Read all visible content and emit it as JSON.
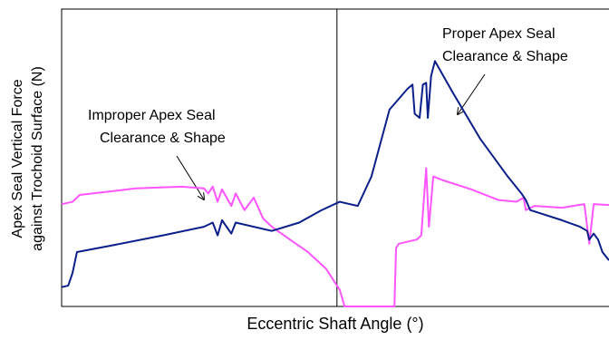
{
  "chart_data": {
    "type": "line",
    "y_label_lines": [
      "Apex Seal Vertical Force",
      "against Trochoid Surface (N)"
    ],
    "x_label": "Eccentric Shaft Angle (°)",
    "xlim": [
      0,
      100
    ],
    "ylim": [
      0,
      100
    ],
    "vline": 50.3,
    "annotations": [
      {
        "lines": [
          "Improper Apex Seal",
          "Clearance & Shape"
        ]
      },
      {
        "lines": [
          "Proper Apex Seal",
          "Clearance & Shape"
        ]
      }
    ],
    "series": [
      {
        "color": "#ff55ff",
        "x": [
          0,
          2.0,
          3.3,
          13.6,
          21.9,
          26.0,
          26.8,
          27.6,
          28.5,
          29.3,
          31.0,
          31.8,
          33.4,
          35.1,
          36.8,
          38.4,
          41.7,
          45.0,
          48.3,
          50.8,
          51.7,
          60.8,
          61.1,
          61.6,
          64.9,
          65.7,
          66.6,
          67.1,
          67.9,
          69.9,
          74.8,
          79.8,
          83.1,
          84.4,
          84.8,
          86.4,
          91.4,
          95.5,
          96.4,
          97.2,
          100
        ],
        "values": [
          34.4,
          35.2,
          37.5,
          39.7,
          40.3,
          39.7,
          38.0,
          40.3,
          35.2,
          39.4,
          33.8,
          38.0,
          32.4,
          36.6,
          29.6,
          26.8,
          22.5,
          18.3,
          12.7,
          5.6,
          0,
          0,
          19.7,
          21.1,
          22.5,
          23.9,
          46.5,
          26.8,
          43.7,
          42.3,
          39.4,
          35.8,
          35.2,
          36.6,
          32.4,
          33.8,
          33.2,
          34.4,
          21.1,
          34.4,
          34.1
        ]
      },
      {
        "color": "#0a1f8a",
        "x": [
          0,
          1.2,
          2.0,
          2.8,
          8.6,
          18.5,
          26.0,
          27.6,
          28.5,
          29.3,
          31.0,
          31.8,
          38.4,
          43.4,
          47.5,
          50.8,
          54.1,
          56.6,
          59.9,
          63.2,
          64.1,
          64.5,
          65.4,
          66.0,
          66.6,
          66.9,
          67.5,
          68.2,
          71.5,
          76.5,
          81.5,
          84.0,
          84.8,
          85.6,
          91.4,
          94.7,
          96.0,
          96.4,
          97.2,
          98.0,
          98.8,
          100
        ],
        "values": [
          6.5,
          7.0,
          11.3,
          18.3,
          20.3,
          23.9,
          26.8,
          28.2,
          23.9,
          29.0,
          24.5,
          28.2,
          25.4,
          28.2,
          32.4,
          35.2,
          33.8,
          43.7,
          66.2,
          73.2,
          74.6,
          64.8,
          63.4,
          74.6,
          75.2,
          63.4,
          77.5,
          82.5,
          71.8,
          56.3,
          43.7,
          38.0,
          35.8,
          32.4,
          29.0,
          26.8,
          25.4,
          22.5,
          24.5,
          22.5,
          18.3,
          15.5
        ]
      }
    ]
  }
}
